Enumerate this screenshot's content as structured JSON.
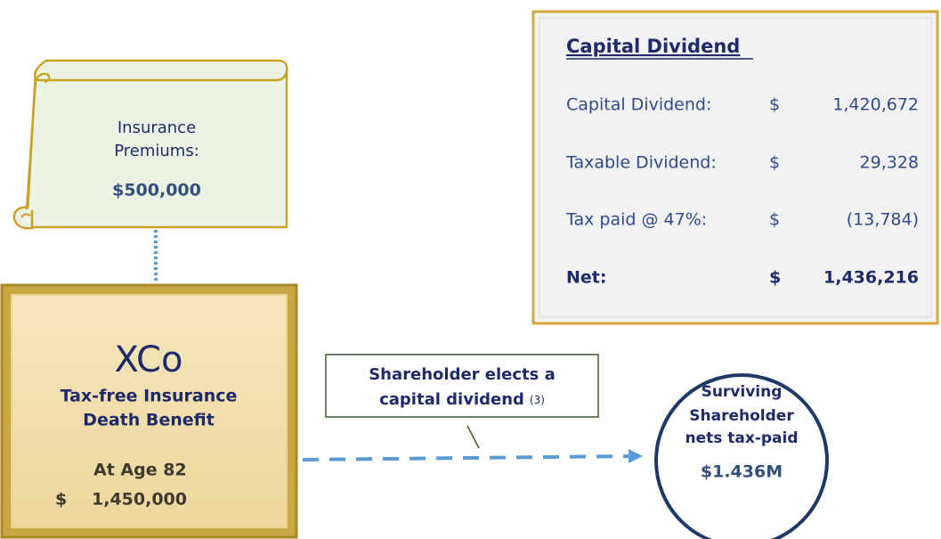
{
  "scroll": {
    "label": [
      "Insurance",
      "Premiums:"
    ],
    "amount": "$500,000"
  },
  "company": {
    "name": "XCo",
    "benefit": [
      "Tax-free Insurance",
      "Death Benefit"
    ],
    "age": "At Age 82",
    "currency": "$",
    "amount": "1,450,000"
  },
  "callout": {
    "lines": [
      "Shareholder elects a",
      "capital dividend"
    ],
    "note": "(3)"
  },
  "result": {
    "lines": [
      "Surviving",
      "Shareholder",
      "nets tax-paid"
    ],
    "amount": "$1.436M"
  },
  "panel": {
    "title": "Capital Dividend",
    "rows": [
      [
        "Capital Dividend:",
        "$",
        "1,420,672"
      ],
      [
        "Taxable Dividend:",
        "$",
        "29,328"
      ],
      [
        "Tax paid @ 47%:",
        "$",
        "(13,784)"
      ],
      [
        "Net:",
        "$",
        "1,436,216"
      ]
    ]
  }
}
